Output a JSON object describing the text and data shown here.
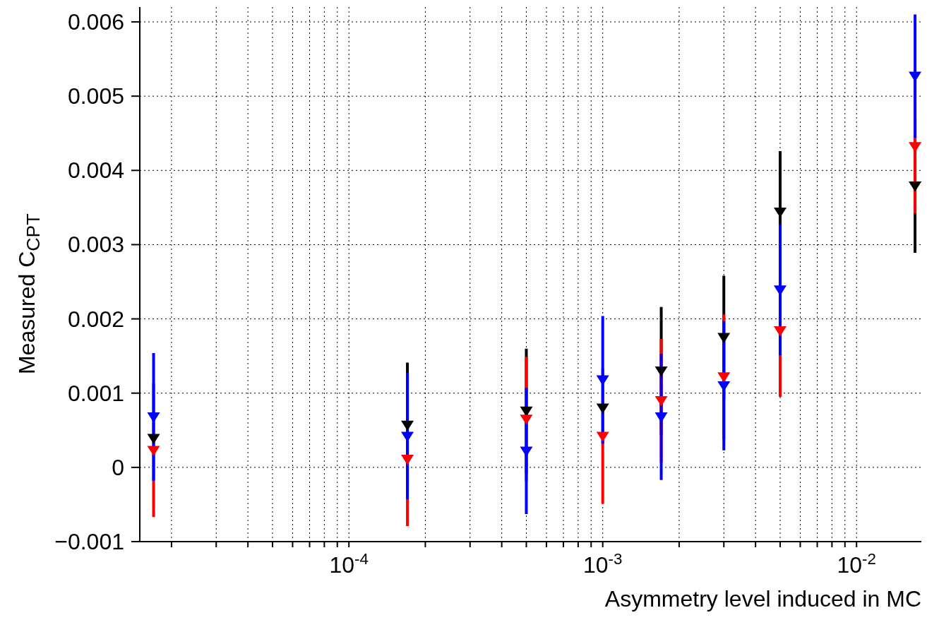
{
  "chart_data": {
    "type": "scatter",
    "xlabel": "Asymmetry level induced in MC",
    "ylabel": "Measured C$_{CPT}$",
    "log": "x",
    "grid": true,
    "marker": "triangle",
    "legend": false,
    "x": [
      1.7e-05,
      0.00017,
      0.0005,
      0.001,
      0.0017,
      0.003,
      0.005,
      0.017
    ],
    "xlim": [
      1.5e-05,
      0.018
    ],
    "xticks": [
      {
        "value": 2e-05,
        "label": null
      },
      {
        "value": 3e-05,
        "label": null
      },
      {
        "value": 4e-05,
        "label": null
      },
      {
        "value": 5e-05,
        "label": null
      },
      {
        "value": 6e-05,
        "label": null
      },
      {
        "value": 7e-05,
        "label": null
      },
      {
        "value": 8e-05,
        "label": null
      },
      {
        "value": 9e-05,
        "label": null
      },
      {
        "value": 0.0001,
        "label": "10$^{-4}$"
      },
      {
        "value": 0.0002,
        "label": null
      },
      {
        "value": 0.0003,
        "label": null
      },
      {
        "value": 0.0004,
        "label": null
      },
      {
        "value": 0.0005,
        "label": null
      },
      {
        "value": 0.0006,
        "label": null
      },
      {
        "value": 0.0007,
        "label": null
      },
      {
        "value": 0.0008,
        "label": null
      },
      {
        "value": 0.0009,
        "label": null
      },
      {
        "value": 0.001,
        "label": "10$^{-3}$"
      },
      {
        "value": 0.002,
        "label": null
      },
      {
        "value": 0.003,
        "label": null
      },
      {
        "value": 0.004,
        "label": null
      },
      {
        "value": 0.005,
        "label": null
      },
      {
        "value": 0.006,
        "label": null
      },
      {
        "value": 0.007,
        "label": null
      },
      {
        "value": 0.008,
        "label": null
      },
      {
        "value": 0.009,
        "label": null
      },
      {
        "value": 0.01,
        "label": "10$^{-2}$"
      }
    ],
    "ylim": [
      -0.001,
      0.0062
    ],
    "yticks": [
      {
        "value": -0.001,
        "label": "−0.001"
      },
      0,
      0.001,
      0.002,
      0.003,
      0.004,
      0.005,
      0.006
    ],
    "series": [
      {
        "color": "#000000",
        "values": [
          0.00039,
          0.00057,
          0.00076,
          0.0008,
          0.0013,
          0.00175,
          0.00344,
          0.00379
        ],
        "errors": [
          null,
          0.00084,
          0.00084,
          null,
          0.00086,
          0.00083,
          0.00082,
          0.0009
        ]
      },
      {
        "color": "#ff0000",
        "values": [
          0.00023,
          0.00011,
          0.00065,
          0.00042,
          0.0009,
          0.00122,
          0.00184,
          0.00432
        ],
        "errors": [
          0.0009,
          0.0009,
          0.00084,
          0.00091,
          0.00083,
          0.00084,
          0.00089,
          0.0009
        ]
      },
      {
        "color": "#0000ff",
        "values": [
          0.00068,
          0.00042,
          0.00022,
          0.00118,
          0.00068,
          0.0011,
          0.00239,
          0.00527
        ],
        "errors": [
          0.00086,
          0.00085,
          0.00085,
          0.00086,
          0.00085,
          0.00087,
          0.00088,
          0.00083
        ]
      }
    ]
  }
}
